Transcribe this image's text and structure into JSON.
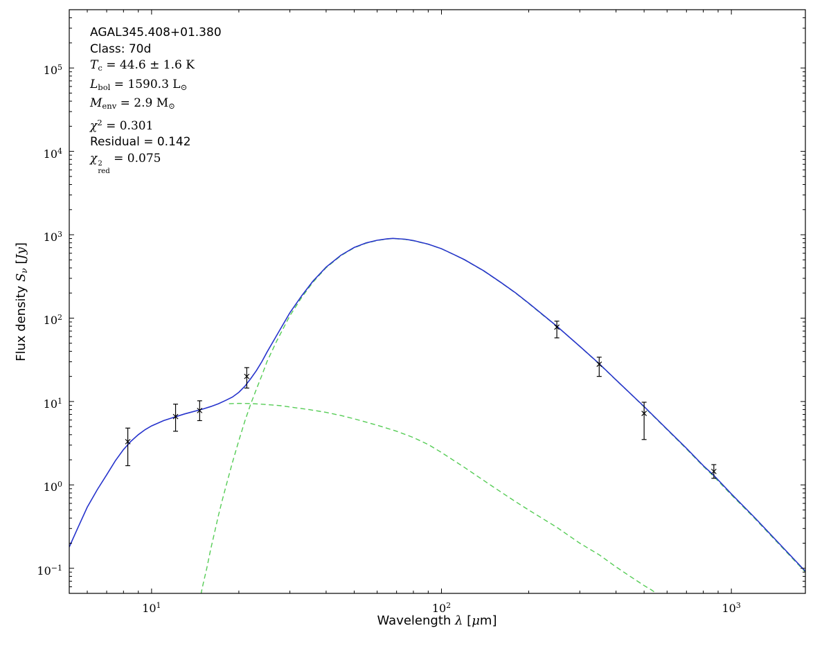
{
  "figure": {
    "bg": "#ffffff"
  },
  "chart_data": {
    "type": "line",
    "title": "",
    "x_scale": "log",
    "y_scale": "log",
    "xlim": [
      5.2,
      1800
    ],
    "ylim": [
      0.05,
      500000
    ],
    "grid": false,
    "axes_color": "#000000",
    "xlabel_parts": [
      {
        "s": "sans",
        "t": "Wavelength "
      },
      {
        "s": "var",
        "t": "λ"
      },
      {
        "s": "sans",
        "t": " ["
      },
      {
        "s": "var",
        "t": "μ"
      },
      {
        "s": "sans",
        "t": "m]"
      }
    ],
    "ylabel_parts": [
      {
        "s": "sans",
        "t": "Flux density "
      },
      {
        "s": "var",
        "t": "S"
      },
      {
        "s": "subvar",
        "t": "ν"
      },
      {
        "s": "sans",
        "t": " ["
      },
      {
        "s": "var",
        "t": "Jy"
      },
      {
        "s": "sans",
        "t": "]"
      }
    ],
    "x_ticks": [
      {
        "value": 10,
        "base": "10",
        "exp": "1"
      },
      {
        "value": 100,
        "base": "10",
        "exp": "2"
      },
      {
        "value": 1000,
        "base": "10",
        "exp": "3"
      }
    ],
    "y_ticks": [
      {
        "value": 0.1,
        "base": "10",
        "exp": "−1"
      },
      {
        "value": 1,
        "base": "10",
        "exp": "0"
      },
      {
        "value": 10,
        "base": "10",
        "exp": "1"
      },
      {
        "value": 100,
        "base": "10",
        "exp": "2"
      },
      {
        "value": 1000,
        "base": "10",
        "exp": "3"
      },
      {
        "value": 10000,
        "base": "10",
        "exp": "4"
      },
      {
        "value": 100000,
        "base": "10",
        "exp": "5"
      }
    ],
    "annotation_lines": [
      {
        "name": "source-name",
        "segments": [
          {
            "s": "sans",
            "t": "AGAL345.408+01.380"
          }
        ]
      },
      {
        "name": "class",
        "segments": [
          {
            "s": "sans",
            "t": "Class: 70d"
          }
        ]
      },
      {
        "name": "dust-temperature",
        "segments": [
          {
            "s": "var",
            "t": "T"
          },
          {
            "s": "sub",
            "t": "c"
          },
          {
            "s": "math",
            "t": " = 44.6 ± 1.6 K"
          }
        ]
      },
      {
        "name": "bolometric-luminosity",
        "segments": [
          {
            "s": "var",
            "t": "L"
          },
          {
            "s": "sub",
            "t": "bol"
          },
          {
            "s": "math",
            "t": " = 1590.3 L"
          },
          {
            "s": "sub",
            "t": "⊙"
          }
        ]
      },
      {
        "name": "envelope-mass",
        "segments": [
          {
            "s": "var",
            "t": "M"
          },
          {
            "s": "sub",
            "t": "env"
          },
          {
            "s": "math",
            "t": " = 2.9 M"
          },
          {
            "s": "sub",
            "t": "⊙"
          }
        ]
      },
      {
        "name": "chi-squared",
        "segments": [
          {
            "s": "var",
            "t": "χ"
          },
          {
            "s": "sup",
            "t": "2"
          },
          {
            "s": "math",
            "t": " = 0.301"
          }
        ]
      },
      {
        "name": "residual",
        "segments": [
          {
            "s": "sans",
            "t": "Residual = 0.142"
          }
        ]
      },
      {
        "name": "reduced-chi-squared",
        "segments": [
          {
            "s": "var",
            "t": "χ"
          },
          {
            "s": "supsub",
            "sup": "2",
            "sub": "red"
          },
          {
            "s": "math",
            "t": " = 0.075"
          }
        ]
      }
    ],
    "series": [
      {
        "name": "cold-envelope-component",
        "color": "#55cc55",
        "style": "dashed",
        "width": 1.4,
        "points": [
          [
            14.8,
            0.049
          ],
          [
            15,
            0.061
          ],
          [
            15.5,
            0.1
          ],
          [
            16,
            0.17
          ],
          [
            16.5,
            0.27
          ],
          [
            17,
            0.43
          ],
          [
            17.5,
            0.64
          ],
          [
            18,
            0.93
          ],
          [
            19,
            1.85
          ],
          [
            20,
            3.4
          ],
          [
            21,
            5.9
          ],
          [
            22,
            9.4
          ],
          [
            23,
            14.1
          ],
          [
            24,
            20.5
          ],
          [
            25,
            30
          ],
          [
            27,
            53
          ],
          [
            30,
            107
          ],
          [
            33,
            179
          ],
          [
            36,
            269
          ],
          [
            40,
            402
          ],
          [
            45,
            561
          ],
          [
            50,
            698
          ],
          [
            55,
            793
          ],
          [
            60,
            853
          ],
          [
            65,
            889
          ],
          [
            68,
            900
          ],
          [
            72,
            889
          ],
          [
            75,
            879
          ],
          [
            80,
            848
          ],
          [
            90,
            768
          ],
          [
            100,
            677
          ],
          [
            110,
            581
          ],
          [
            120,
            501
          ],
          [
            140,
            367
          ],
          [
            160,
            268
          ],
          [
            180,
            200
          ],
          [
            200,
            150
          ],
          [
            225,
            107
          ],
          [
            250,
            80
          ],
          [
            300,
            45.8
          ],
          [
            350,
            28.2
          ],
          [
            400,
            18.1
          ],
          [
            450,
            12.3
          ],
          [
            500,
            8.6
          ],
          [
            600,
            4.6
          ],
          [
            700,
            2.7
          ],
          [
            800,
            1.67
          ],
          [
            870,
            1.26
          ],
          [
            1000,
            0.76
          ],
          [
            1200,
            0.4
          ],
          [
            1500,
            0.176
          ],
          [
            1800,
            0.09
          ]
        ]
      },
      {
        "name": "warm-component",
        "color": "#55cc55",
        "style": "dashed",
        "width": 1.4,
        "points": [
          [
            18.5,
            9.4
          ],
          [
            20,
            9.5
          ],
          [
            22,
            9.45
          ],
          [
            25,
            9.2
          ],
          [
            28,
            8.9
          ],
          [
            30,
            8.6
          ],
          [
            35,
            8.0
          ],
          [
            40,
            7.4
          ],
          [
            45,
            6.8
          ],
          [
            50,
            6.2
          ],
          [
            60,
            5.2
          ],
          [
            70,
            4.4
          ],
          [
            80,
            3.7
          ],
          [
            90,
            3.05
          ],
          [
            100,
            2.45
          ],
          [
            120,
            1.62
          ],
          [
            150,
            0.96
          ],
          [
            180,
            0.63
          ],
          [
            200,
            0.5
          ],
          [
            250,
            0.31
          ],
          [
            300,
            0.2
          ],
          [
            350,
            0.145
          ],
          [
            400,
            0.104
          ],
          [
            450,
            0.079
          ],
          [
            500,
            0.062
          ],
          [
            530,
            0.055
          ],
          [
            560,
            0.048
          ]
        ]
      },
      {
        "name": "total-model-fit",
        "color": "#2633cc",
        "style": "solid",
        "width": 1.6,
        "points": [
          [
            5.2,
            0.18
          ],
          [
            5.6,
            0.32
          ],
          [
            6.0,
            0.54
          ],
          [
            6.5,
            0.88
          ],
          [
            7.0,
            1.32
          ],
          [
            7.5,
            1.95
          ],
          [
            8.0,
            2.65
          ],
          [
            8.5,
            3.35
          ],
          [
            9.0,
            4.0
          ],
          [
            9.5,
            4.6
          ],
          [
            10,
            5.1
          ],
          [
            11,
            5.9
          ],
          [
            12,
            6.5
          ],
          [
            13,
            7.1
          ],
          [
            14,
            7.6
          ],
          [
            15,
            8.1
          ],
          [
            16,
            8.7
          ],
          [
            17,
            9.4
          ],
          [
            18,
            10.3
          ],
          [
            19,
            11.3
          ],
          [
            20,
            12.9
          ],
          [
            21,
            15.3
          ],
          [
            22,
            18.9
          ],
          [
            23,
            23.5
          ],
          [
            24,
            30
          ],
          [
            25,
            39
          ],
          [
            27,
            62
          ],
          [
            30,
            116
          ],
          [
            33,
            187
          ],
          [
            36,
            277
          ],
          [
            40,
            409
          ],
          [
            45,
            568
          ],
          [
            50,
            704
          ],
          [
            55,
            798
          ],
          [
            60,
            858
          ],
          [
            65,
            894
          ],
          [
            68,
            904
          ],
          [
            72,
            893
          ],
          [
            75,
            883
          ],
          [
            80,
            852
          ],
          [
            90,
            771
          ],
          [
            100,
            680
          ],
          [
            110,
            583
          ],
          [
            120,
            503
          ],
          [
            140,
            369
          ],
          [
            160,
            269
          ],
          [
            180,
            201
          ],
          [
            200,
            151
          ],
          [
            225,
            108
          ],
          [
            250,
            80
          ],
          [
            300,
            46
          ],
          [
            350,
            28.4
          ],
          [
            400,
            18.2
          ],
          [
            450,
            12.3
          ],
          [
            500,
            8.7
          ],
          [
            600,
            4.65
          ],
          [
            700,
            2.75
          ],
          [
            800,
            1.7
          ],
          [
            870,
            1.3
          ],
          [
            1000,
            0.78
          ],
          [
            1200,
            0.41
          ],
          [
            1500,
            0.18
          ],
          [
            1800,
            0.092
          ]
        ]
      }
    ],
    "photometry": {
      "name": "photometric-data-points",
      "color": "#000000",
      "marker": "x",
      "points": [
        {
          "x": 8.28,
          "y": 3.3,
          "ep": 1.5,
          "em": 1.6
        },
        {
          "x": 12.1,
          "y": 6.6,
          "ep": 2.7,
          "em": 2.2
        },
        {
          "x": 14.65,
          "y": 7.8,
          "ep": 2.4,
          "em": 1.9
        },
        {
          "x": 21.3,
          "y": 20,
          "ep": 5.5,
          "em": 5.5
        },
        {
          "x": 250,
          "y": 78,
          "ep": 14,
          "em": 20
        },
        {
          "x": 350,
          "y": 28,
          "ep": 6,
          "em": 8
        },
        {
          "x": 500,
          "y": 7.2,
          "ep": 2.6,
          "em": 3.7
        },
        {
          "x": 870,
          "y": 1.45,
          "ep": 0.3,
          "em": 0.25
        }
      ]
    }
  }
}
